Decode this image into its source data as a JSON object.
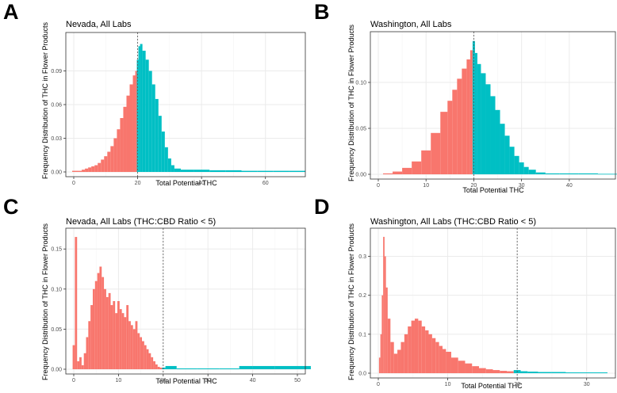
{
  "colors": {
    "below": "#F8766D",
    "above": "#00BFC4",
    "grid": "#ebebeb",
    "frame": "#333333",
    "threshold": "#555555"
  },
  "chart_data": [
    {
      "id": "A",
      "type": "bar",
      "title": "Nevada, All Labs",
      "xlabel": "Total Potential THC",
      "ylabel": "Frequency Distribution of THC in Flower Products",
      "xlim": [
        0,
        70
      ],
      "ylim": [
        0,
        0.12
      ],
      "threshold": 20,
      "xticks": [
        0,
        20,
        40,
        60
      ],
      "yticks": [
        0.0,
        0.03,
        0.06,
        0.09
      ],
      "ytick_labels": [
        "0.00",
        "0.03",
        "0.06",
        "0.09"
      ],
      "x": [
        0,
        1,
        2,
        3,
        4,
        5,
        6,
        7,
        8,
        9,
        10,
        11,
        12,
        13,
        14,
        15,
        16,
        17,
        18,
        19,
        19.5,
        20,
        20.5,
        21,
        22,
        23,
        24,
        25,
        26,
        27,
        28,
        29,
        30,
        31,
        32,
        35,
        40,
        45,
        50,
        55,
        60,
        65,
        70
      ],
      "values": [
        0.001,
        0.001,
        0.001,
        0.002,
        0.003,
        0.004,
        0.005,
        0.006,
        0.008,
        0.011,
        0.014,
        0.018,
        0.023,
        0.03,
        0.038,
        0.048,
        0.058,
        0.068,
        0.078,
        0.086,
        0.09,
        0.1,
        0.112,
        0.114,
        0.108,
        0.1,
        0.09,
        0.078,
        0.065,
        0.05,
        0.036,
        0.022,
        0.012,
        0.006,
        0.003,
        0.002,
        0.002,
        0.0015,
        0.0015,
        0.001,
        0.001,
        0.001,
        0.001
      ]
    },
    {
      "id": "B",
      "type": "bar",
      "title": "Washington, All Labs",
      "xlabel": "Total Potential THC",
      "ylabel": "Frequency Distribution of THC in Flower Products",
      "xlim": [
        0,
        48
      ],
      "ylim": [
        0,
        0.15
      ],
      "threshold": 20,
      "xticks": [
        0,
        10,
        20,
        30,
        40
      ],
      "yticks": [
        0.0,
        0.05,
        0.1
      ],
      "ytick_labels": [
        "0.00",
        "0.05",
        "0.10"
      ],
      "x": [
        2,
        4,
        6,
        8,
        10,
        12,
        14,
        15,
        16,
        17,
        18,
        19,
        19.5,
        20,
        20.5,
        21,
        22,
        23,
        24,
        25,
        26,
        27,
        28,
        29,
        30,
        31,
        32,
        34,
        36,
        40,
        44,
        48
      ],
      "values": [
        0.001,
        0.003,
        0.007,
        0.014,
        0.026,
        0.045,
        0.068,
        0.08,
        0.092,
        0.104,
        0.115,
        0.125,
        0.135,
        0.145,
        0.132,
        0.12,
        0.11,
        0.098,
        0.085,
        0.07,
        0.055,
        0.042,
        0.03,
        0.02,
        0.013,
        0.008,
        0.005,
        0.002,
        0.001,
        0.001,
        0.001,
        0.0005
      ]
    },
    {
      "id": "C",
      "type": "bar",
      "title": "Nevada, All Labs (THC:CBD Ratio < 5)",
      "xlabel": "Total Potential THC",
      "ylabel": "Frequency Distribution of THC in Flower Products",
      "xlim": [
        0,
        50
      ],
      "ylim": [
        0,
        0.17
      ],
      "threshold": 20,
      "xticks": [
        0,
        10,
        20,
        30,
        40,
        50
      ],
      "yticks": [
        0.0,
        0.05,
        0.1,
        0.15
      ],
      "ytick_labels": [
        "0.00",
        "0.05",
        "0.10",
        "0.15"
      ],
      "x": [
        0,
        0.5,
        1,
        1.5,
        2,
        2.5,
        3,
        3.5,
        4,
        4.5,
        5,
        5.5,
        6,
        6.5,
        7,
        7.5,
        8,
        8.5,
        9,
        9.5,
        10,
        10.5,
        11,
        11.5,
        12,
        12.5,
        13,
        13.5,
        14,
        14.5,
        15,
        15.5,
        16,
        16.5,
        17,
        17.5,
        18,
        18.5,
        19,
        19.5,
        20,
        21,
        25,
        30,
        35,
        39,
        41,
        49
      ],
      "values": [
        0.03,
        0.165,
        0.01,
        0.015,
        0.005,
        0.02,
        0.04,
        0.06,
        0.08,
        0.1,
        0.11,
        0.12,
        0.128,
        0.115,
        0.1,
        0.09,
        0.095,
        0.08,
        0.085,
        0.07,
        0.085,
        0.075,
        0.07,
        0.065,
        0.08,
        0.06,
        0.055,
        0.05,
        0.06,
        0.045,
        0.04,
        0.035,
        0.03,
        0.025,
        0.02,
        0.015,
        0.01,
        0.006,
        0.003,
        0.002,
        0.002,
        0.004,
        0.001,
        0.001,
        0.001,
        0.004,
        0.004,
        0.004
      ]
    },
    {
      "id": "D",
      "type": "bar",
      "title": "Washington, All Labs (THC:CBD Ratio < 5)",
      "xlabel": "Total Potential THC",
      "ylabel": "Frequency Distribution of THC in Flower Products",
      "xlim": [
        0,
        33
      ],
      "ylim": [
        0,
        0.36
      ],
      "threshold": 20,
      "xticks": [
        0,
        10,
        20,
        30
      ],
      "yticks": [
        0.0,
        0.1,
        0.2,
        0.3
      ],
      "ytick_labels": [
        "0.0",
        "0.1",
        "0.2",
        "0.3"
      ],
      "x": [
        0.2,
        0.4,
        0.6,
        0.8,
        1,
        1.2,
        1.5,
        2,
        2.5,
        3,
        3.5,
        4,
        4.5,
        5,
        5.5,
        6,
        6.5,
        7,
        7.5,
        8,
        8.5,
        9,
        9.5,
        10,
        11,
        12,
        13,
        14,
        15,
        16,
        17,
        18,
        19,
        20,
        21,
        22,
        24,
        26,
        28,
        30,
        32
      ],
      "values": [
        0.04,
        0.1,
        0.2,
        0.35,
        0.3,
        0.22,
        0.14,
        0.08,
        0.05,
        0.06,
        0.08,
        0.1,
        0.12,
        0.135,
        0.14,
        0.135,
        0.12,
        0.11,
        0.1,
        0.09,
        0.08,
        0.07,
        0.062,
        0.055,
        0.04,
        0.032,
        0.025,
        0.018,
        0.013,
        0.01,
        0.008,
        0.006,
        0.005,
        0.008,
        0.005,
        0.004,
        0.003,
        0.003,
        0.002,
        0.002,
        0.002
      ]
    }
  ]
}
